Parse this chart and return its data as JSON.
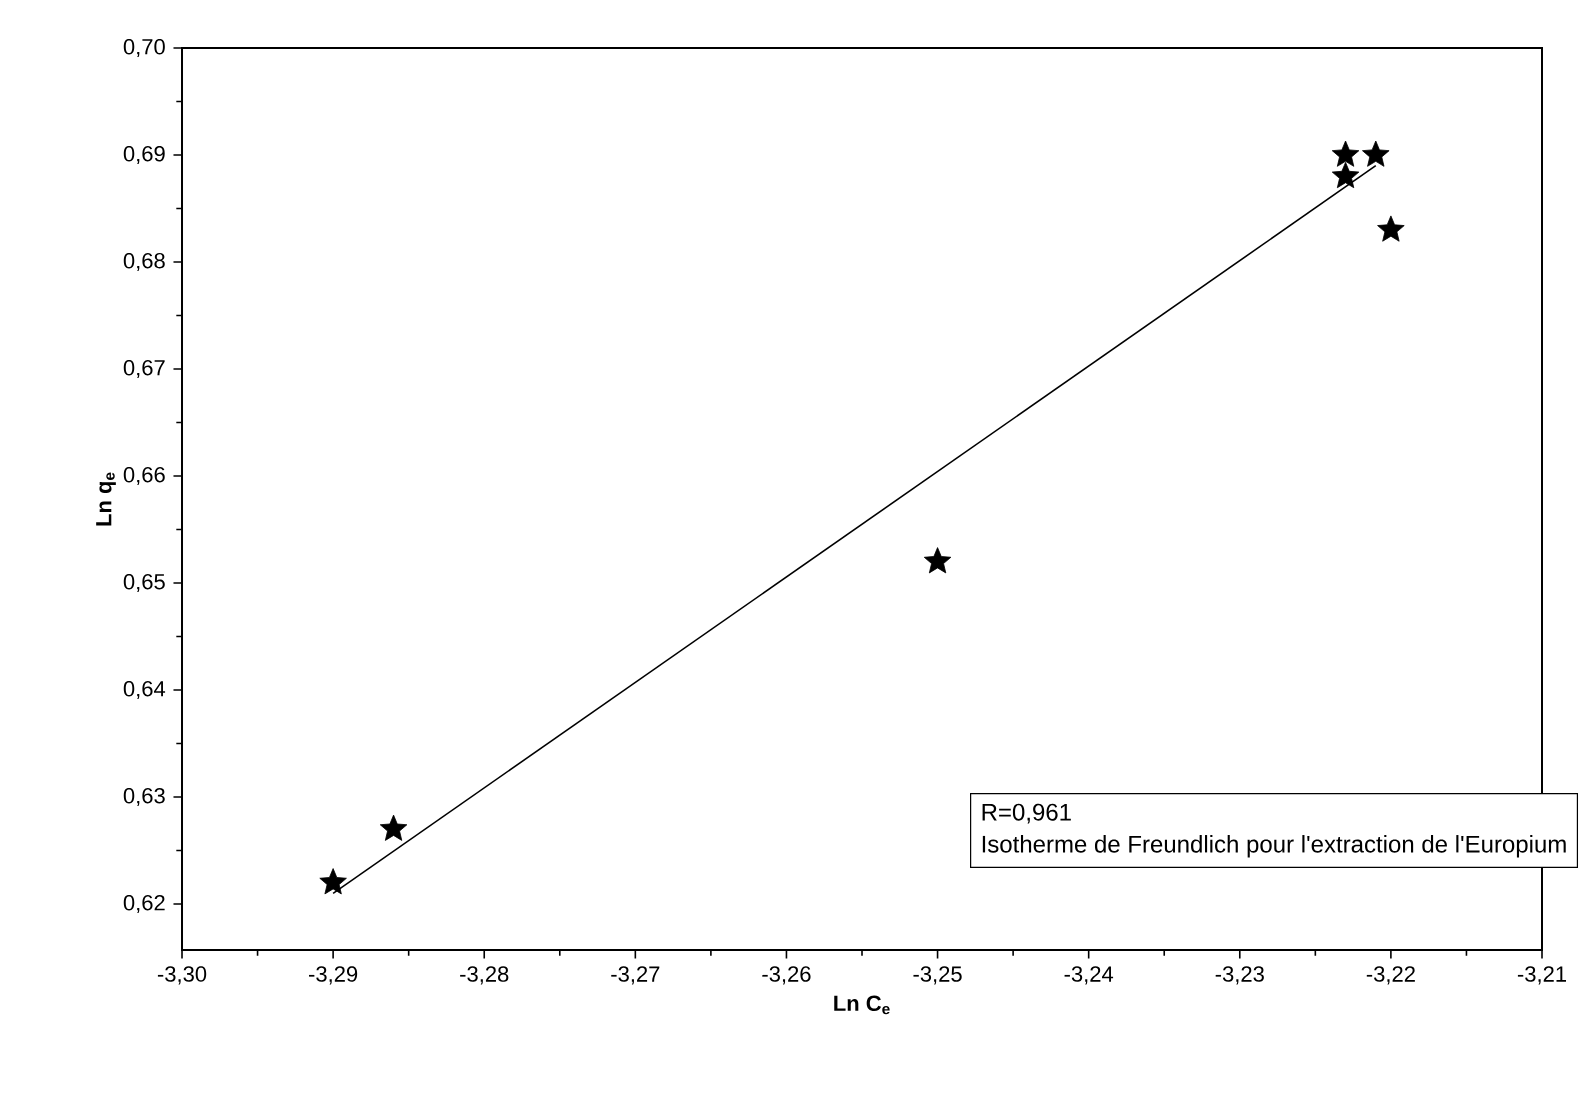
{
  "chart_data": {
    "type": "scatter",
    "xlabel": "**Ln C$_{e}$**",
    "ylabel": "**Ln q$_{e}$**",
    "xlim": [
      -3.3,
      -3.21
    ],
    "ylim": [
      0.6157,
      0.7
    ],
    "xticks": [
      {
        "value": -3.3,
        "label": "-3,30"
      },
      {
        "value": -3.29,
        "label": "-3,29"
      },
      {
        "value": -3.28,
        "label": "-3,28"
      },
      {
        "value": -3.27,
        "label": "-3,27"
      },
      {
        "value": -3.26,
        "label": "-3,26"
      },
      {
        "value": -3.25,
        "label": "-3,25"
      },
      {
        "value": -3.24,
        "label": "-3,24"
      },
      {
        "value": -3.23,
        "label": "-3,23"
      },
      {
        "value": -3.22,
        "label": "-3,22"
      },
      {
        "value": -3.21,
        "label": "-3,21"
      }
    ],
    "yticks": [
      {
        "value": 0.62,
        "label": "0,62"
      },
      {
        "value": 0.63,
        "label": "0,63"
      },
      {
        "value": 0.64,
        "label": "0,64"
      },
      {
        "value": 0.65,
        "label": "0,65"
      },
      {
        "value": 0.66,
        "label": "0,66"
      },
      {
        "value": 0.67,
        "label": "0,67"
      },
      {
        "value": 0.68,
        "label": "0,68"
      },
      {
        "value": 0.69,
        "label": "0,69"
      },
      {
        "value": 0.7,
        "label": "0,70"
      }
    ],
    "marker": "star",
    "grid": false,
    "series": [
      {
        "color": "#000000",
        "x": [
          -3.29,
          -3.286,
          -3.25,
          -3.223,
          -3.221,
          -3.223,
          -3.22
        ],
        "values": [
          0.622,
          0.627,
          0.652,
          0.69,
          0.69,
          0.688,
          0.683
        ]
      },
      {
        "type": "line",
        "marker": "none",
        "color": "#000000",
        "x": [
          -3.29,
          -3.221
        ],
        "values": [
          0.621,
          0.689
        ]
      }
    ],
    "annotations": [
      "R=0,961",
      "Isotherme de Freundlich pour l'extraction de l'Europium"
    ]
  }
}
